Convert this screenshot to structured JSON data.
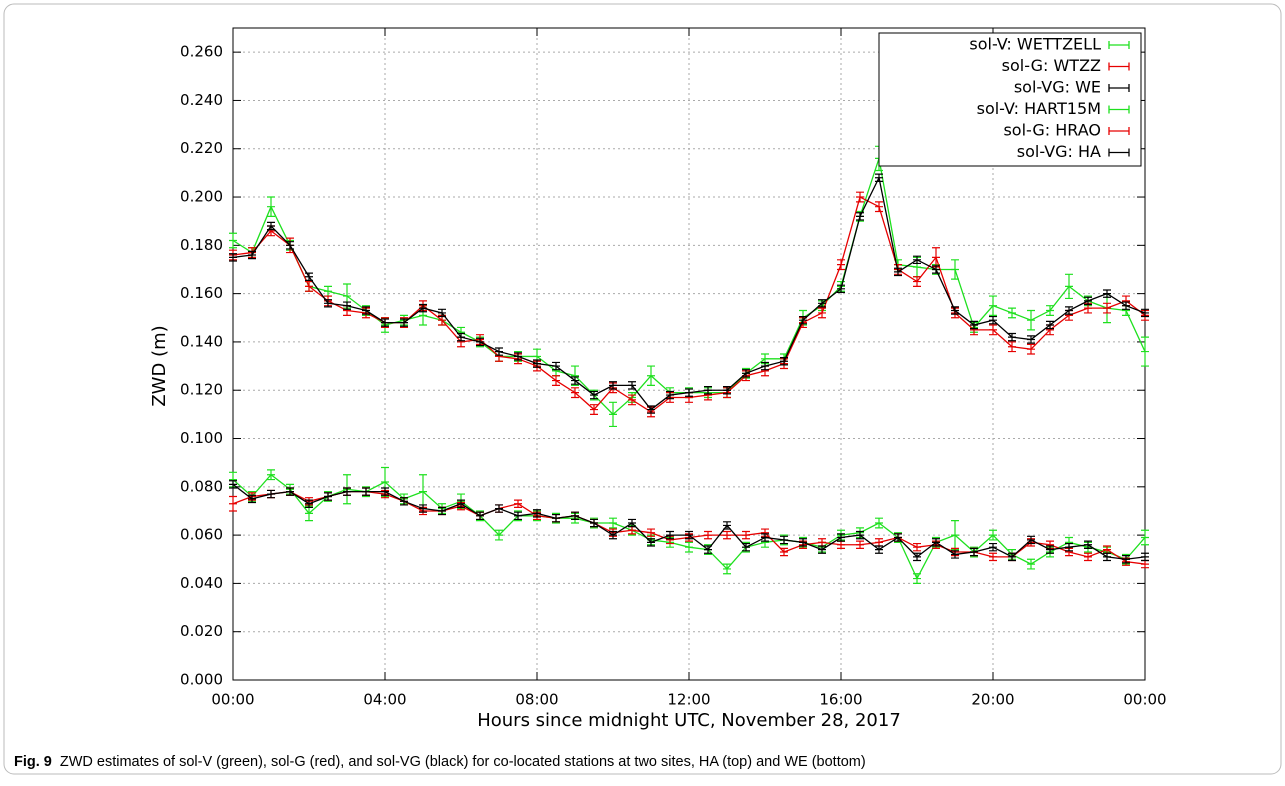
{
  "chart_data": {
    "type": "line",
    "x_label": "Hours since midnight UTC, November 28, 2017",
    "y_label": "ZWD  (m)",
    "caption_label": "Fig. 9",
    "caption": "ZWD estimates of sol-V (green), sol-G (red), and sol-VG (black) for co-located stations at two sites, HA (top) and WE (bottom)",
    "grid": true,
    "legend": "upper right",
    "xlim": [
      0,
      24
    ],
    "ylim": [
      0,
      0.27
    ],
    "xticks": [
      {
        "value": 0,
        "label": "00:00"
      },
      {
        "value": 4,
        "label": "04:00"
      },
      {
        "value": 8,
        "label": "08:00"
      },
      {
        "value": 12,
        "label": "12:00"
      },
      {
        "value": 16,
        "label": "16:00"
      },
      {
        "value": 20,
        "label": "20:00"
      },
      {
        "value": 24,
        "label": "00:00"
      }
    ],
    "yticks": [
      {
        "value": 0,
        "label": "0.000"
      },
      {
        "value": 0.02,
        "label": "0.020"
      },
      {
        "value": 0.04,
        "label": "0.040"
      },
      {
        "value": 0.06,
        "label": "0.060"
      },
      {
        "value": 0.08,
        "label": "0.080"
      },
      {
        "value": 0.1,
        "label": "0.100"
      },
      {
        "value": 0.12,
        "label": "0.120"
      },
      {
        "value": 0.14,
        "label": "0.140"
      },
      {
        "value": 0.16,
        "label": "0.160"
      },
      {
        "value": 0.18,
        "label": "0.180"
      },
      {
        "value": 0.2,
        "label": "0.200"
      },
      {
        "value": 0.22,
        "label": "0.220"
      },
      {
        "value": 0.24,
        "label": "0.240"
      },
      {
        "value": 0.26,
        "label": "0.260"
      }
    ],
    "x": [
      0,
      0.5,
      1,
      1.5,
      2,
      2.5,
      3,
      3.5,
      4,
      4.5,
      5,
      5.5,
      6,
      6.5,
      7,
      7.5,
      8,
      8.5,
      9,
      9.5,
      10,
      10.5,
      11,
      11.5,
      12,
      12.5,
      13,
      13.5,
      14,
      14.5,
      15,
      15.5,
      16,
      16.5,
      17,
      17.5,
      18,
      18.5,
      19,
      19.5,
      20,
      20.5,
      21,
      21.5,
      22,
      22.5,
      23,
      23.5,
      24
    ],
    "series": [
      {
        "name": "sol-V: WETTZELL",
        "color": "#1ee01e",
        "values": [
          0.083,
          0.076,
          0.085,
          0.079,
          0.069,
          0.076,
          0.079,
          0.078,
          0.082,
          0.075,
          0.078,
          0.071,
          0.074,
          0.068,
          0.06,
          0.068,
          0.068,
          0.067,
          0.067,
          0.065,
          0.065,
          0.062,
          0.058,
          0.057,
          0.055,
          0.054,
          0.046,
          0.055,
          0.057,
          0.058,
          0.057,
          0.055,
          0.06,
          0.061,
          0.065,
          0.059,
          0.042,
          0.057,
          0.06,
          0.053,
          0.06,
          0.052,
          0.048,
          0.053,
          0.057,
          0.055,
          0.053,
          0.05,
          0.059
        ],
        "errors": [
          0.003,
          0.002,
          0.002,
          0.002,
          0.003,
          0.002,
          0.006,
          0.002,
          0.006,
          0.002,
          0.007,
          0.002,
          0.003,
          0.002,
          0.002,
          0.002,
          0.002,
          0.002,
          0.002,
          0.002,
          0.002,
          0.002,
          0.002,
          0.002,
          0.002,
          0.002,
          0.002,
          0.002,
          0.002,
          0.002,
          0.002,
          0.002,
          0.002,
          0.002,
          0.002,
          0.002,
          0.002,
          0.002,
          0.006,
          0.002,
          0.002,
          0.002,
          0.002,
          0.002,
          0.002,
          0.002,
          0.002,
          0.002,
          0.003
        ]
      },
      {
        "name": "sol-G: WTZZ",
        "color": "#e60000",
        "values": [
          0.073,
          0.076,
          0.077,
          0.078,
          0.074,
          0.076,
          0.078,
          0.078,
          0.077,
          0.074,
          0.07,
          0.07,
          0.072,
          0.068,
          0.071,
          0.073,
          0.068,
          0.067,
          0.068,
          0.065,
          0.061,
          0.062,
          0.061,
          0.058,
          0.059,
          0.06,
          0.06,
          0.06,
          0.061,
          0.053,
          0.056,
          0.057,
          0.056,
          0.056,
          0.057,
          0.059,
          0.055,
          0.056,
          0.053,
          0.053,
          0.051,
          0.051,
          0.057,
          0.056,
          0.053,
          0.051,
          0.054,
          0.049,
          0.048
        ],
        "errors": [
          0.003,
          0.0015,
          0.0015,
          0.0015,
          0.0015,
          0.0015,
          0.0015,
          0.0015,
          0.0015,
          0.0015,
          0.0015,
          0.0015,
          0.0015,
          0.0015,
          0.0015,
          0.0015,
          0.0015,
          0.0015,
          0.0015,
          0.0015,
          0.0015,
          0.0015,
          0.0015,
          0.0015,
          0.0015,
          0.0015,
          0.0015,
          0.0015,
          0.0015,
          0.0015,
          0.0015,
          0.0015,
          0.0015,
          0.0015,
          0.0015,
          0.0015,
          0.0015,
          0.0015,
          0.0015,
          0.0015,
          0.0015,
          0.0015,
          0.0015,
          0.0015,
          0.0015,
          0.0015,
          0.0015,
          0.0015,
          0.0015
        ]
      },
      {
        "name": "sol-VG: WE",
        "color": "#000000",
        "values": [
          0.081,
          0.075,
          0.077,
          0.078,
          0.073,
          0.076,
          0.078,
          0.078,
          0.078,
          0.074,
          0.071,
          0.07,
          0.073,
          0.068,
          0.071,
          0.068,
          0.069,
          0.067,
          0.068,
          0.065,
          0.06,
          0.065,
          0.057,
          0.06,
          0.06,
          0.054,
          0.064,
          0.055,
          0.059,
          0.058,
          0.057,
          0.054,
          0.059,
          0.06,
          0.054,
          0.059,
          0.051,
          0.057,
          0.052,
          0.053,
          0.055,
          0.051,
          0.058,
          0.054,
          0.055,
          0.056,
          0.051,
          0.05,
          0.051
        ],
        "errors": [
          0.0015,
          0.0015,
          0.0015,
          0.0015,
          0.0015,
          0.0015,
          0.0015,
          0.0015,
          0.0015,
          0.0015,
          0.0015,
          0.0015,
          0.0015,
          0.0015,
          0.0015,
          0.0015,
          0.0015,
          0.0015,
          0.0015,
          0.0015,
          0.0015,
          0.0015,
          0.0015,
          0.0015,
          0.0015,
          0.0015,
          0.0015,
          0.0015,
          0.0015,
          0.0015,
          0.0015,
          0.0015,
          0.0015,
          0.0015,
          0.0015,
          0.0015,
          0.0015,
          0.0015,
          0.0015,
          0.0015,
          0.0015,
          0.0015,
          0.0015,
          0.0015,
          0.0015,
          0.0015,
          0.0015,
          0.0015,
          0.0015
        ]
      },
      {
        "name": "sol-V: HART15M",
        "color": "#1ee01e",
        "values": [
          0.182,
          0.177,
          0.196,
          0.18,
          0.163,
          0.161,
          0.159,
          0.153,
          0.147,
          0.149,
          0.151,
          0.149,
          0.144,
          0.14,
          0.134,
          0.134,
          0.134,
          0.128,
          0.126,
          0.118,
          0.11,
          0.117,
          0.126,
          0.119,
          0.119,
          0.119,
          0.119,
          0.127,
          0.133,
          0.133,
          0.15,
          0.155,
          0.163,
          0.192,
          0.216,
          0.172,
          0.171,
          0.17,
          0.17,
          0.146,
          0.155,
          0.152,
          0.149,
          0.153,
          0.163,
          0.157,
          0.154,
          0.153,
          0.136
        ],
        "errors": [
          0.003,
          0.002,
          0.004,
          0.002,
          0.002,
          0.002,
          0.005,
          0.002,
          0.003,
          0.002,
          0.004,
          0.002,
          0.002,
          0.002,
          0.002,
          0.002,
          0.003,
          0.002,
          0.004,
          0.002,
          0.005,
          0.002,
          0.004,
          0.002,
          0.002,
          0.002,
          0.002,
          0.002,
          0.002,
          0.002,
          0.003,
          0.002,
          0.002,
          0.002,
          0.005,
          0.002,
          0.004,
          0.002,
          0.004,
          0.002,
          0.004,
          0.002,
          0.004,
          0.002,
          0.005,
          0.002,
          0.006,
          0.002,
          0.006
        ]
      },
      {
        "name": "sol-G: HRAO",
        "color": "#e60000",
        "values": [
          0.176,
          0.177,
          0.186,
          0.18,
          0.163,
          0.157,
          0.153,
          0.152,
          0.148,
          0.148,
          0.155,
          0.149,
          0.14,
          0.141,
          0.134,
          0.133,
          0.13,
          0.124,
          0.119,
          0.112,
          0.121,
          0.116,
          0.111,
          0.117,
          0.117,
          0.118,
          0.119,
          0.126,
          0.128,
          0.131,
          0.148,
          0.152,
          0.172,
          0.2,
          0.196,
          0.17,
          0.165,
          0.175,
          0.152,
          0.145,
          0.145,
          0.138,
          0.137,
          0.145,
          0.151,
          0.154,
          0.154,
          0.157,
          0.151
        ],
        "errors": [
          0.002,
          0.002,
          0.002,
          0.003,
          0.002,
          0.002,
          0.002,
          0.002,
          0.002,
          0.002,
          0.002,
          0.002,
          0.002,
          0.002,
          0.002,
          0.002,
          0.002,
          0.002,
          0.002,
          0.002,
          0.002,
          0.002,
          0.002,
          0.002,
          0.002,
          0.002,
          0.002,
          0.002,
          0.002,
          0.002,
          0.002,
          0.002,
          0.002,
          0.002,
          0.002,
          0.002,
          0.002,
          0.004,
          0.002,
          0.002,
          0.002,
          0.002,
          0.002,
          0.002,
          0.002,
          0.002,
          0.002,
          0.002,
          0.002
        ]
      },
      {
        "name": "sol-VG: HA",
        "color": "#000000",
        "values": [
          0.175,
          0.176,
          0.188,
          0.18,
          0.167,
          0.156,
          0.155,
          0.153,
          0.148,
          0.148,
          0.154,
          0.152,
          0.142,
          0.14,
          0.136,
          0.134,
          0.131,
          0.13,
          0.124,
          0.118,
          0.122,
          0.122,
          0.112,
          0.118,
          0.119,
          0.12,
          0.12,
          0.127,
          0.13,
          0.132,
          0.149,
          0.156,
          0.162,
          0.192,
          0.208,
          0.169,
          0.174,
          0.17,
          0.153,
          0.147,
          0.149,
          0.142,
          0.141,
          0.147,
          0.153,
          0.157,
          0.16,
          0.155,
          0.152
        ],
        "errors": [
          0.0015,
          0.0015,
          0.0015,
          0.0015,
          0.0015,
          0.0015,
          0.0015,
          0.0015,
          0.0015,
          0.0015,
          0.0015,
          0.0015,
          0.0015,
          0.0015,
          0.0015,
          0.0015,
          0.0015,
          0.0015,
          0.0015,
          0.0015,
          0.0015,
          0.0015,
          0.0015,
          0.0015,
          0.0015,
          0.0015,
          0.0015,
          0.0015,
          0.0015,
          0.0015,
          0.0015,
          0.0015,
          0.0015,
          0.0015,
          0.0015,
          0.0015,
          0.0015,
          0.0015,
          0.0015,
          0.0015,
          0.0015,
          0.0015,
          0.0015,
          0.0015,
          0.0015,
          0.0015,
          0.0015,
          0.0015,
          0.0015
        ]
      }
    ]
  }
}
